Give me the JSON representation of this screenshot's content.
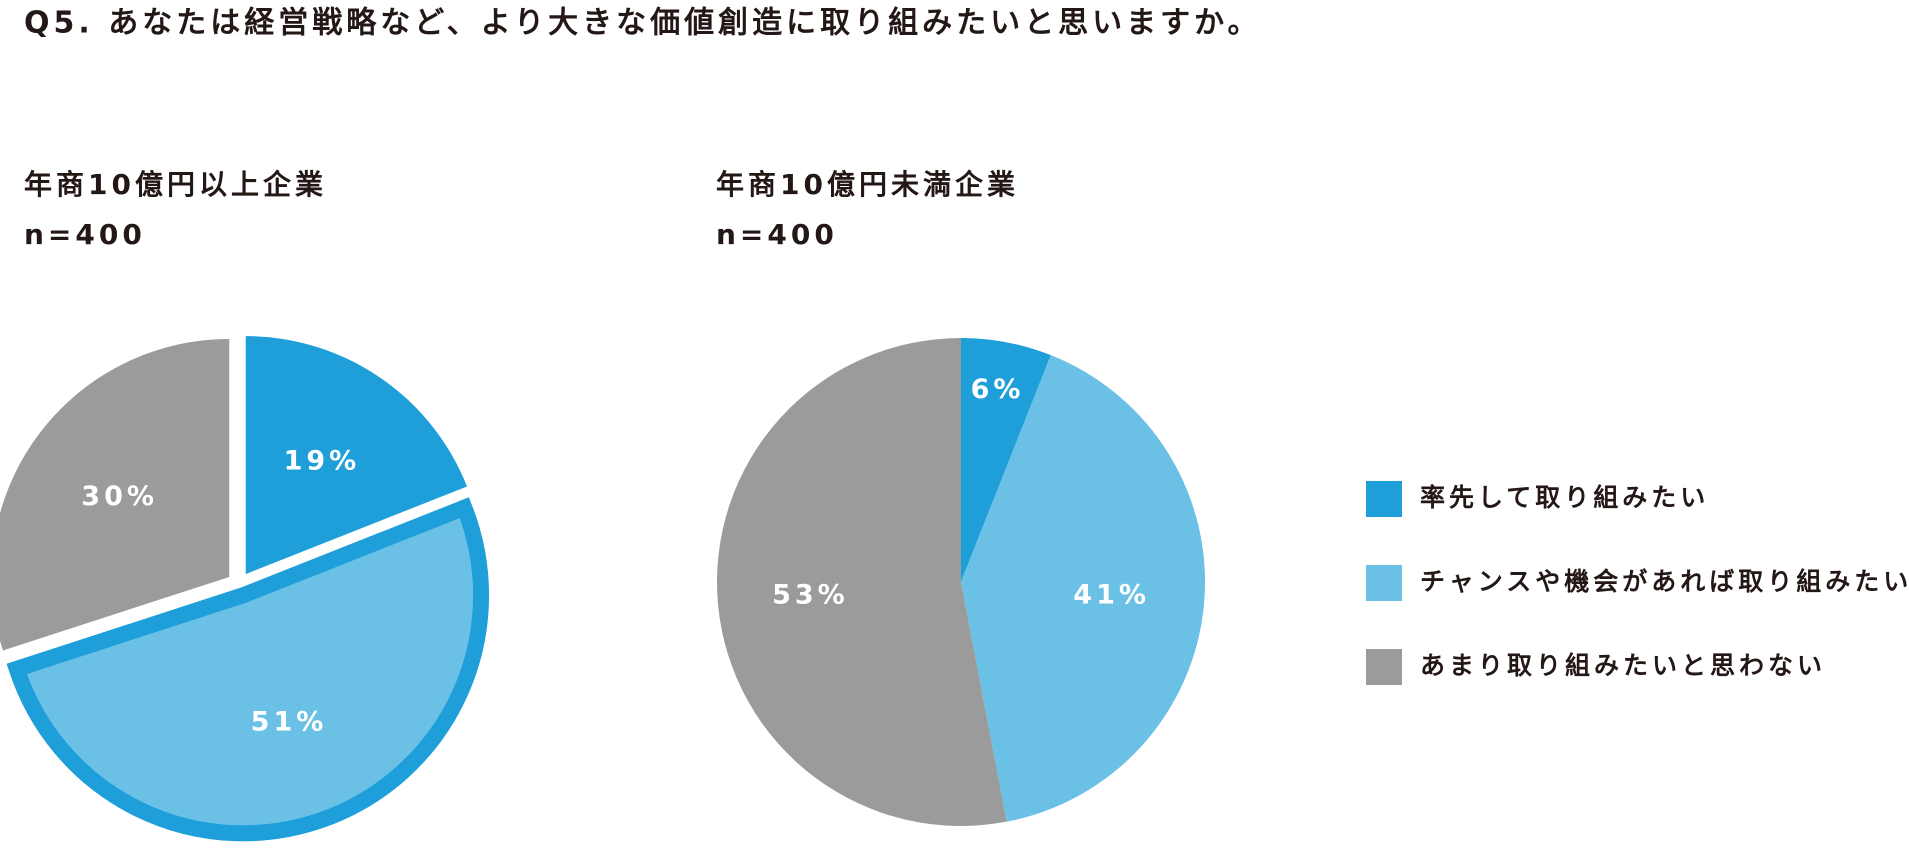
{
  "title": "Q5. あなたは経営戦略など、より大きな価値創造に取り組みたいと思いますか。",
  "legend": {
    "labels": [
      "率先して取り組みたい",
      "チャンスや機会があれば取り組みたい",
      "あまり取り組みたいと思わない"
    ],
    "colors": [
      "#1e9fda",
      "#6bc0e6",
      "#9b9b9b"
    ]
  },
  "chart_data": [
    {
      "type": "pie",
      "title": "年商10億円以上企業",
      "subtitle": "n=400",
      "values": [
        19,
        51,
        30
      ],
      "value_labels": [
        "19%",
        "51%",
        "30%"
      ],
      "colors": [
        "#1e9fda",
        "#6bc0e6",
        "#9b9b9b"
      ],
      "highlight": 1
    },
    {
      "type": "pie",
      "title": "年商10億円未満企業",
      "subtitle": "n=400",
      "values": [
        6,
        41,
        53
      ],
      "value_labels": [
        "6%",
        "41%",
        "53%"
      ],
      "colors": [
        "#1e9fda",
        "#6bc0e6",
        "#9b9b9b"
      ]
    }
  ]
}
